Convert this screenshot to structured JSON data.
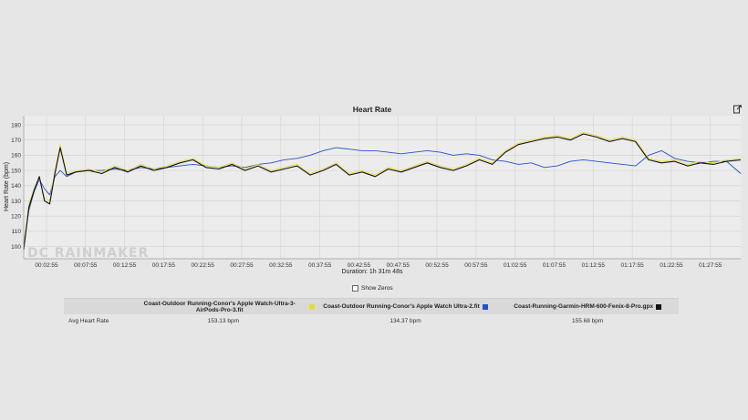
{
  "chart_data": {
    "type": "line",
    "title": "Heart Rate",
    "xlabel": "Duration: 1h 31m 48s",
    "ylabel": "Heart Rate (bpm)",
    "watermark": "DC RAINMAKER",
    "x_unit": "seconds",
    "xlim": [
      0,
      5508
    ],
    "ylim": [
      92,
      186
    ],
    "y_ticks": [
      100,
      110,
      120,
      130,
      140,
      150,
      160,
      170,
      180
    ],
    "x_ticks": [
      {
        "value": 175,
        "label": "00:02:55"
      },
      {
        "value": 475,
        "label": "00:07:55"
      },
      {
        "value": 775,
        "label": "00:12:55"
      },
      {
        "value": 1075,
        "label": "00:17:55"
      },
      {
        "value": 1375,
        "label": "00:22:55"
      },
      {
        "value": 1675,
        "label": "00:27:55"
      },
      {
        "value": 1975,
        "label": "00:32:55"
      },
      {
        "value": 2275,
        "label": "00:37:55"
      },
      {
        "value": 2575,
        "label": "00:42:55"
      },
      {
        "value": 2875,
        "label": "00:47:55"
      },
      {
        "value": 3175,
        "label": "00:52:55"
      },
      {
        "value": 3475,
        "label": "00:57:55"
      },
      {
        "value": 3775,
        "label": "01:02:55"
      },
      {
        "value": 4075,
        "label": "01:07:55"
      },
      {
        "value": 4375,
        "label": "01:12:55"
      },
      {
        "value": 4675,
        "label": "01:17:55"
      },
      {
        "value": 4975,
        "label": "01:22:55"
      },
      {
        "value": 5275,
        "label": "01:27:55"
      }
    ],
    "grid": true,
    "series": [
      {
        "name": "Coast-Outdoor Running-Conor's Apple Watch-Ultra-3-AirPods-Pro-3.fit",
        "color": "#e8dc3c",
        "avg": "153.13 bpm",
        "x": [
          0,
          40,
          80,
          120,
          160,
          200,
          240,
          280,
          330,
          400,
          500,
          600,
          700,
          800,
          900,
          1000,
          1100,
          1200,
          1300,
          1400,
          1500,
          1600,
          1700,
          1800,
          1900,
          2000,
          2100,
          2200,
          2300,
          2400,
          2500,
          2600,
          2700,
          2800,
          2900,
          3000,
          3100,
          3200,
          3300,
          3400,
          3500,
          3600,
          3700,
          3800,
          3900,
          4000,
          4100,
          4200,
          4300,
          4400,
          4500,
          4600,
          4700,
          4800,
          4900,
          5000,
          5100,
          5200,
          5300,
          5400,
          5508
        ],
        "y": [
          100,
          128,
          138,
          145,
          132,
          130,
          150,
          167,
          148,
          150,
          151,
          149,
          153,
          150,
          154,
          151,
          153,
          156,
          158,
          153,
          152,
          155,
          151,
          154,
          150,
          152,
          154,
          148,
          151,
          155,
          148,
          150,
          147,
          152,
          150,
          153,
          156,
          153,
          151,
          154,
          158,
          155,
          163,
          168,
          170,
          172,
          173,
          171,
          175,
          173,
          170,
          172,
          170,
          158,
          156,
          157,
          154,
          156,
          155,
          157,
          158
        ]
      },
      {
        "name": "Coast-Outdoor Running-Conor's Apple Watch Ultra-2.fit",
        "color": "#2850c8",
        "avg": "134.37 bpm",
        "x": [
          0,
          40,
          80,
          120,
          160,
          200,
          240,
          280,
          330,
          400,
          500,
          600,
          700,
          800,
          900,
          1000,
          1100,
          1200,
          1300,
          1400,
          1500,
          1600,
          1700,
          1800,
          1900,
          2000,
          2100,
          2200,
          2300,
          2400,
          2500,
          2600,
          2700,
          2800,
          2900,
          3000,
          3100,
          3200,
          3300,
          3400,
          3500,
          3600,
          3700,
          3800,
          3900,
          4000,
          4100,
          4200,
          4300,
          4400,
          4500,
          4600,
          4700,
          4800,
          4900,
          5000,
          5100,
          5200,
          5300,
          5400,
          5508
        ],
        "y": [
          102,
          124,
          136,
          144,
          138,
          134,
          146,
          150,
          146,
          149,
          150,
          150,
          151,
          150,
          152,
          151,
          152,
          153,
          154,
          153,
          152,
          153,
          152,
          154,
          155,
          157,
          158,
          160,
          163,
          165,
          164,
          163,
          163,
          162,
          161,
          162,
          163,
          162,
          160,
          161,
          160,
          157,
          156,
          154,
          155,
          152,
          153,
          156,
          157,
          156,
          155,
          154,
          153,
          160,
          163,
          158,
          156,
          155,
          156,
          156,
          148
        ]
      },
      {
        "name": "Coast-Running-Garmin-HRM-600-Fenix-8-Pro.gpx",
        "color": "#111111",
        "avg": "155.68 bpm",
        "x": [
          0,
          40,
          80,
          120,
          160,
          200,
          240,
          280,
          330,
          400,
          500,
          600,
          700,
          800,
          900,
          1000,
          1100,
          1200,
          1300,
          1400,
          1500,
          1600,
          1700,
          1800,
          1900,
          2000,
          2100,
          2200,
          2300,
          2400,
          2500,
          2600,
          2700,
          2800,
          2900,
          3000,
          3100,
          3200,
          3300,
          3400,
          3500,
          3600,
          3700,
          3800,
          3900,
          4000,
          4100,
          4200,
          4300,
          4400,
          4500,
          4600,
          4700,
          4800,
          4900,
          5000,
          5100,
          5200,
          5300,
          5400,
          5508
        ],
        "y": [
          98,
          126,
          137,
          146,
          130,
          128,
          148,
          165,
          147,
          149,
          150,
          148,
          152,
          149,
          153,
          150,
          152,
          155,
          157,
          152,
          151,
          154,
          150,
          153,
          149,
          151,
          153,
          147,
          150,
          154,
          147,
          149,
          146,
          151,
          149,
          152,
          155,
          152,
          150,
          153,
          157,
          154,
          162,
          167,
          169,
          171,
          172,
          170,
          174,
          172,
          169,
          171,
          169,
          157,
          155,
          156,
          153,
          155,
          154,
          156,
          157
        ]
      }
    ]
  },
  "controls": {
    "show_zeros_label": "Show Zeros"
  },
  "stats": {
    "row_label": "Avg Heart Rate"
  }
}
